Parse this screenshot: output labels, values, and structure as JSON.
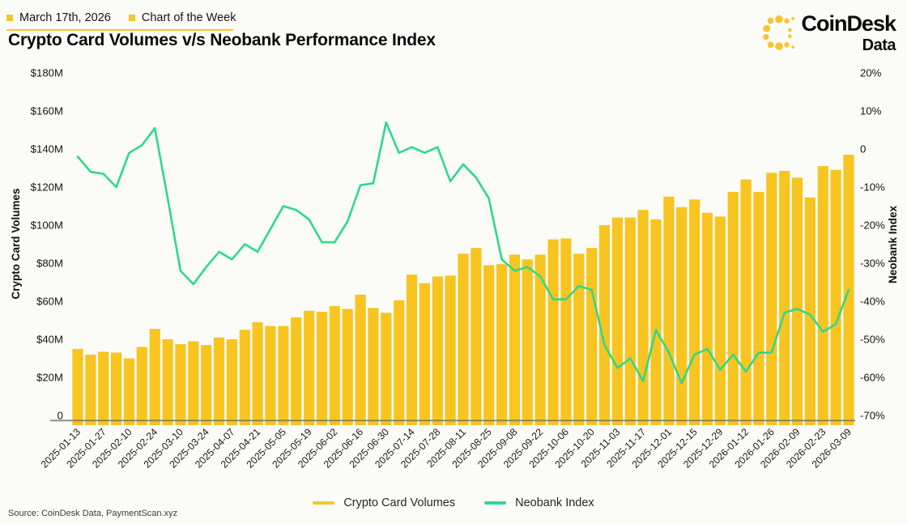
{
  "header": {
    "date_label": "March 17th, 2026",
    "series_label": "Chart of the Week",
    "title": "Crypto Card Volumes v/s Neobank Performance Index"
  },
  "brand": {
    "name": "CoinDesk",
    "sub": "Data"
  },
  "legend": {
    "items": [
      {
        "label": "Crypto Card Volumes",
        "color": "#F7C52D"
      },
      {
        "label": "Neobank Index",
        "color": "#2FD98A"
      }
    ]
  },
  "source": "Source: CoinDesk Data, PaymentScan.xyz",
  "colors": {
    "accent_yellow": "#F7C52D",
    "bar_yellow": "#F8C41F",
    "line_green": "#2FD98A",
    "axis_line": "#77736C",
    "text_dark": "#141414"
  },
  "chart_data": {
    "type": "combo",
    "x": [
      "2025-01-13",
      "2025-01-20",
      "2025-01-27",
      "2025-02-03",
      "2025-02-10",
      "2025-02-17",
      "2025-02-24",
      "2025-03-03",
      "2025-03-10",
      "2025-03-17",
      "2025-03-24",
      "2025-03-31",
      "2025-04-07",
      "2025-04-14",
      "2025-04-21",
      "2025-04-28",
      "2025-05-05",
      "2025-05-12",
      "2025-05-19",
      "2025-05-26",
      "2025-06-02",
      "2025-06-09",
      "2025-06-16",
      "2025-06-23",
      "2025-06-30",
      "2025-07-07",
      "2025-07-14",
      "2025-07-21",
      "2025-07-28",
      "2025-08-04",
      "2025-08-11",
      "2025-08-18",
      "2025-08-25",
      "2025-09-01",
      "2025-09-08",
      "2025-09-15",
      "2025-09-22",
      "2025-09-29",
      "2025-10-06",
      "2025-10-13",
      "2025-10-20",
      "2025-10-27",
      "2025-11-03",
      "2025-11-10",
      "2025-11-17",
      "2025-11-24",
      "2025-12-01",
      "2025-12-08",
      "2025-12-15",
      "2025-12-22",
      "2025-12-29",
      "2026-01-05",
      "2026-01-12",
      "2026-01-19",
      "2026-01-26",
      "2026-02-02",
      "2026-02-09",
      "2026-02-16",
      "2026-02-23",
      "2026-03-02",
      "2026-03-09"
    ],
    "x_tick_labels": [
      "2025-01-13",
      "2025-01-27",
      "2025-02-10",
      "2025-02-24",
      "2025-03-10",
      "2025-03-24",
      "2025-04-07",
      "2025-04-21",
      "2025-05-05",
      "2025-05-19",
      "2025-06-02",
      "2025-06-16",
      "2025-06-30",
      "2025-07-14",
      "2025-07-28",
      "2025-08-11",
      "2025-08-25",
      "2025-09-08",
      "2025-09-22",
      "2025-10-06",
      "2025-10-20",
      "2025-11-03",
      "2025-11-17",
      "2025-12-01",
      "2025-12-15",
      "2025-12-29",
      "2026-01-12",
      "2026-01-26",
      "2026-02-09",
      "2026-02-23",
      "2026-03-09"
    ],
    "series": [
      {
        "name": "Crypto Card Volumes",
        "type": "bar",
        "axis": "left",
        "unit": "$M",
        "color": "#F8C41F",
        "values": [
          35,
          32,
          33.5,
          33,
          30,
          36,
          45.5,
          40,
          37.5,
          39,
          37,
          41,
          40,
          45,
          49,
          47,
          47,
          51.5,
          55,
          54.5,
          57.5,
          56,
          63.5,
          56.5,
          54,
          60.5,
          74,
          69.5,
          73,
          73.5,
          85,
          88,
          79,
          79.5,
          84.5,
          82,
          84.5,
          92.5,
          93,
          85,
          88,
          100,
          104,
          104,
          108,
          103,
          115,
          109.5,
          113.5,
          106.5,
          104.5,
          117.5,
          124,
          117.5,
          127.5,
          128.5,
          125,
          114.5,
          131,
          129,
          137
        ]
      },
      {
        "name": "Neobank Index",
        "type": "line",
        "axis": "right",
        "unit": "%",
        "color": "#2FD98A",
        "values": [
          -2,
          -6,
          -6.5,
          -10,
          -1,
          1,
          5.5,
          -13,
          -32,
          -35.5,
          -31,
          -27,
          -29,
          -25,
          -27,
          -21,
          -15,
          -16,
          -18.5,
          -24.5,
          -24.5,
          -19,
          -9.5,
          -9,
          7,
          -1,
          0.5,
          -1,
          0.5,
          -8.5,
          -4,
          -7.5,
          -13,
          -29,
          -32,
          -31,
          -33.5,
          -39.5,
          -39.5,
          -36,
          -37,
          -51.5,
          -57.5,
          -55,
          -61,
          -47.5,
          -53.5,
          -61.5,
          -54,
          -52.5,
          -58,
          -54,
          -58.5,
          -53.5,
          -53.5,
          -43,
          -42,
          -43.5,
          -48,
          -46,
          -37
        ]
      }
    ],
    "left_axis": {
      "title": "Crypto Card Volumes",
      "min": 0,
      "max": 180,
      "tick_labels": [
        "$180M",
        "$160M",
        "$140M",
        "$120M",
        "$100M",
        "$80M",
        "$60M",
        "$40M",
        "$20M",
        "0"
      ]
    },
    "right_axis": {
      "title": "Neobank Index",
      "min": -70,
      "max": 20,
      "tick_labels": [
        "20%",
        "10%",
        "0",
        "-10%",
        "-20%",
        "-30%",
        "-40%",
        "-50%",
        "-60%",
        "-70%"
      ]
    },
    "grid": false,
    "legend_position": "bottom"
  }
}
